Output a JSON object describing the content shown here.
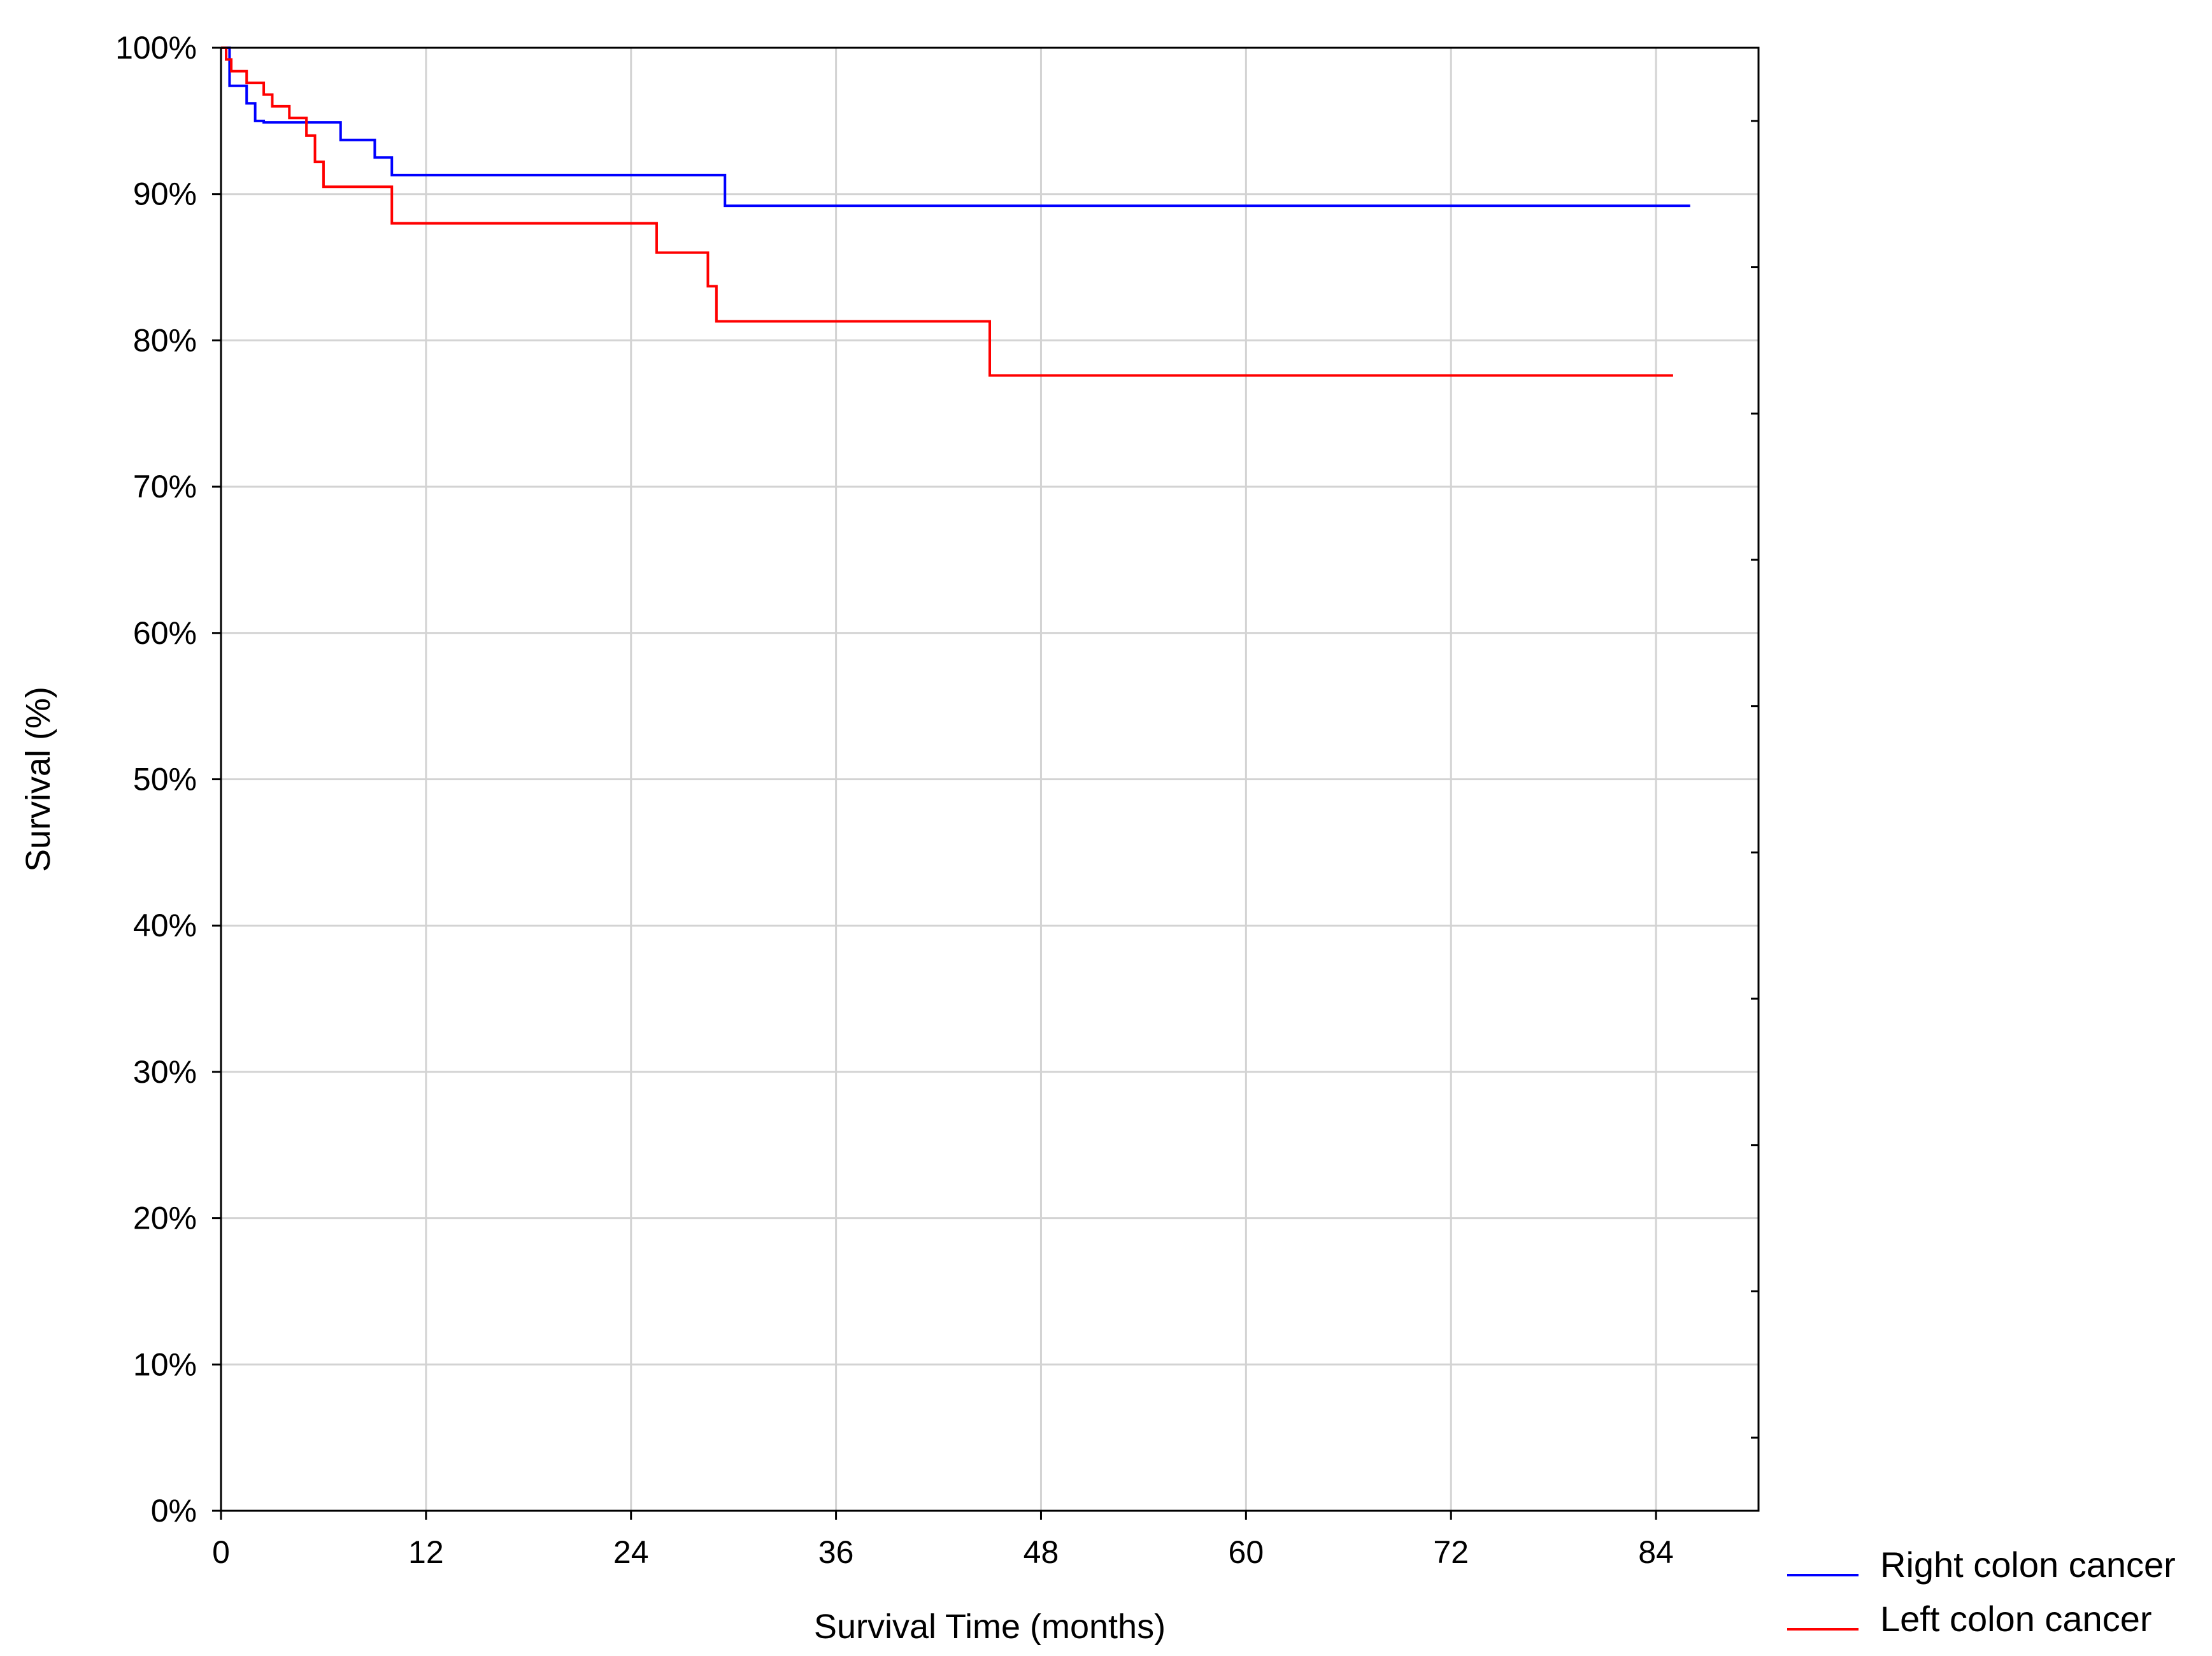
{
  "chart_data": {
    "type": "line",
    "step": true,
    "title": "",
    "xlabel": "Survival Time (months)",
    "ylabel": "Survival (%)",
    "xlim": [
      0,
      90
    ],
    "ylim": [
      0,
      100
    ],
    "xticks": [
      0,
      12,
      24,
      36,
      48,
      60,
      72,
      84
    ],
    "xtick_labels": [
      "0",
      "12",
      "24",
      "36",
      "48",
      "60",
      "72",
      "84"
    ],
    "yticks": [
      0,
      10,
      20,
      30,
      40,
      50,
      60,
      70,
      80,
      90,
      100
    ],
    "ytick_labels": [
      "0%",
      "10%",
      "20%",
      "30%",
      "40%",
      "50%",
      "60%",
      "70%",
      "80%",
      "90%",
      "100%"
    ],
    "grid": true,
    "legend_position": "bottom-right",
    "series": [
      {
        "name": "Right colon cancer",
        "color": "#0000ff",
        "x": [
          0,
          0.5,
          1.5,
          2.0,
          2.5,
          7.0,
          9.0,
          10.0,
          29.5,
          86.0
        ],
        "y": [
          100,
          97.4,
          96.2,
          95.0,
          94.9,
          93.7,
          92.5,
          91.3,
          89.2,
          89.2
        ]
      },
      {
        "name": "Left colon cancer",
        "color": "#ff0000",
        "x": [
          0,
          0.3,
          0.6,
          1.5,
          2.5,
          3.0,
          4.0,
          5.0,
          5.5,
          6.0,
          10.0,
          25.5,
          28.5,
          29.0,
          45.0,
          85.0
        ],
        "y": [
          100,
          99.2,
          98.4,
          97.6,
          96.8,
          96.0,
          95.2,
          94.0,
          92.2,
          90.5,
          88.0,
          86.0,
          83.7,
          81.3,
          77.6,
          77.6
        ]
      }
    ]
  }
}
